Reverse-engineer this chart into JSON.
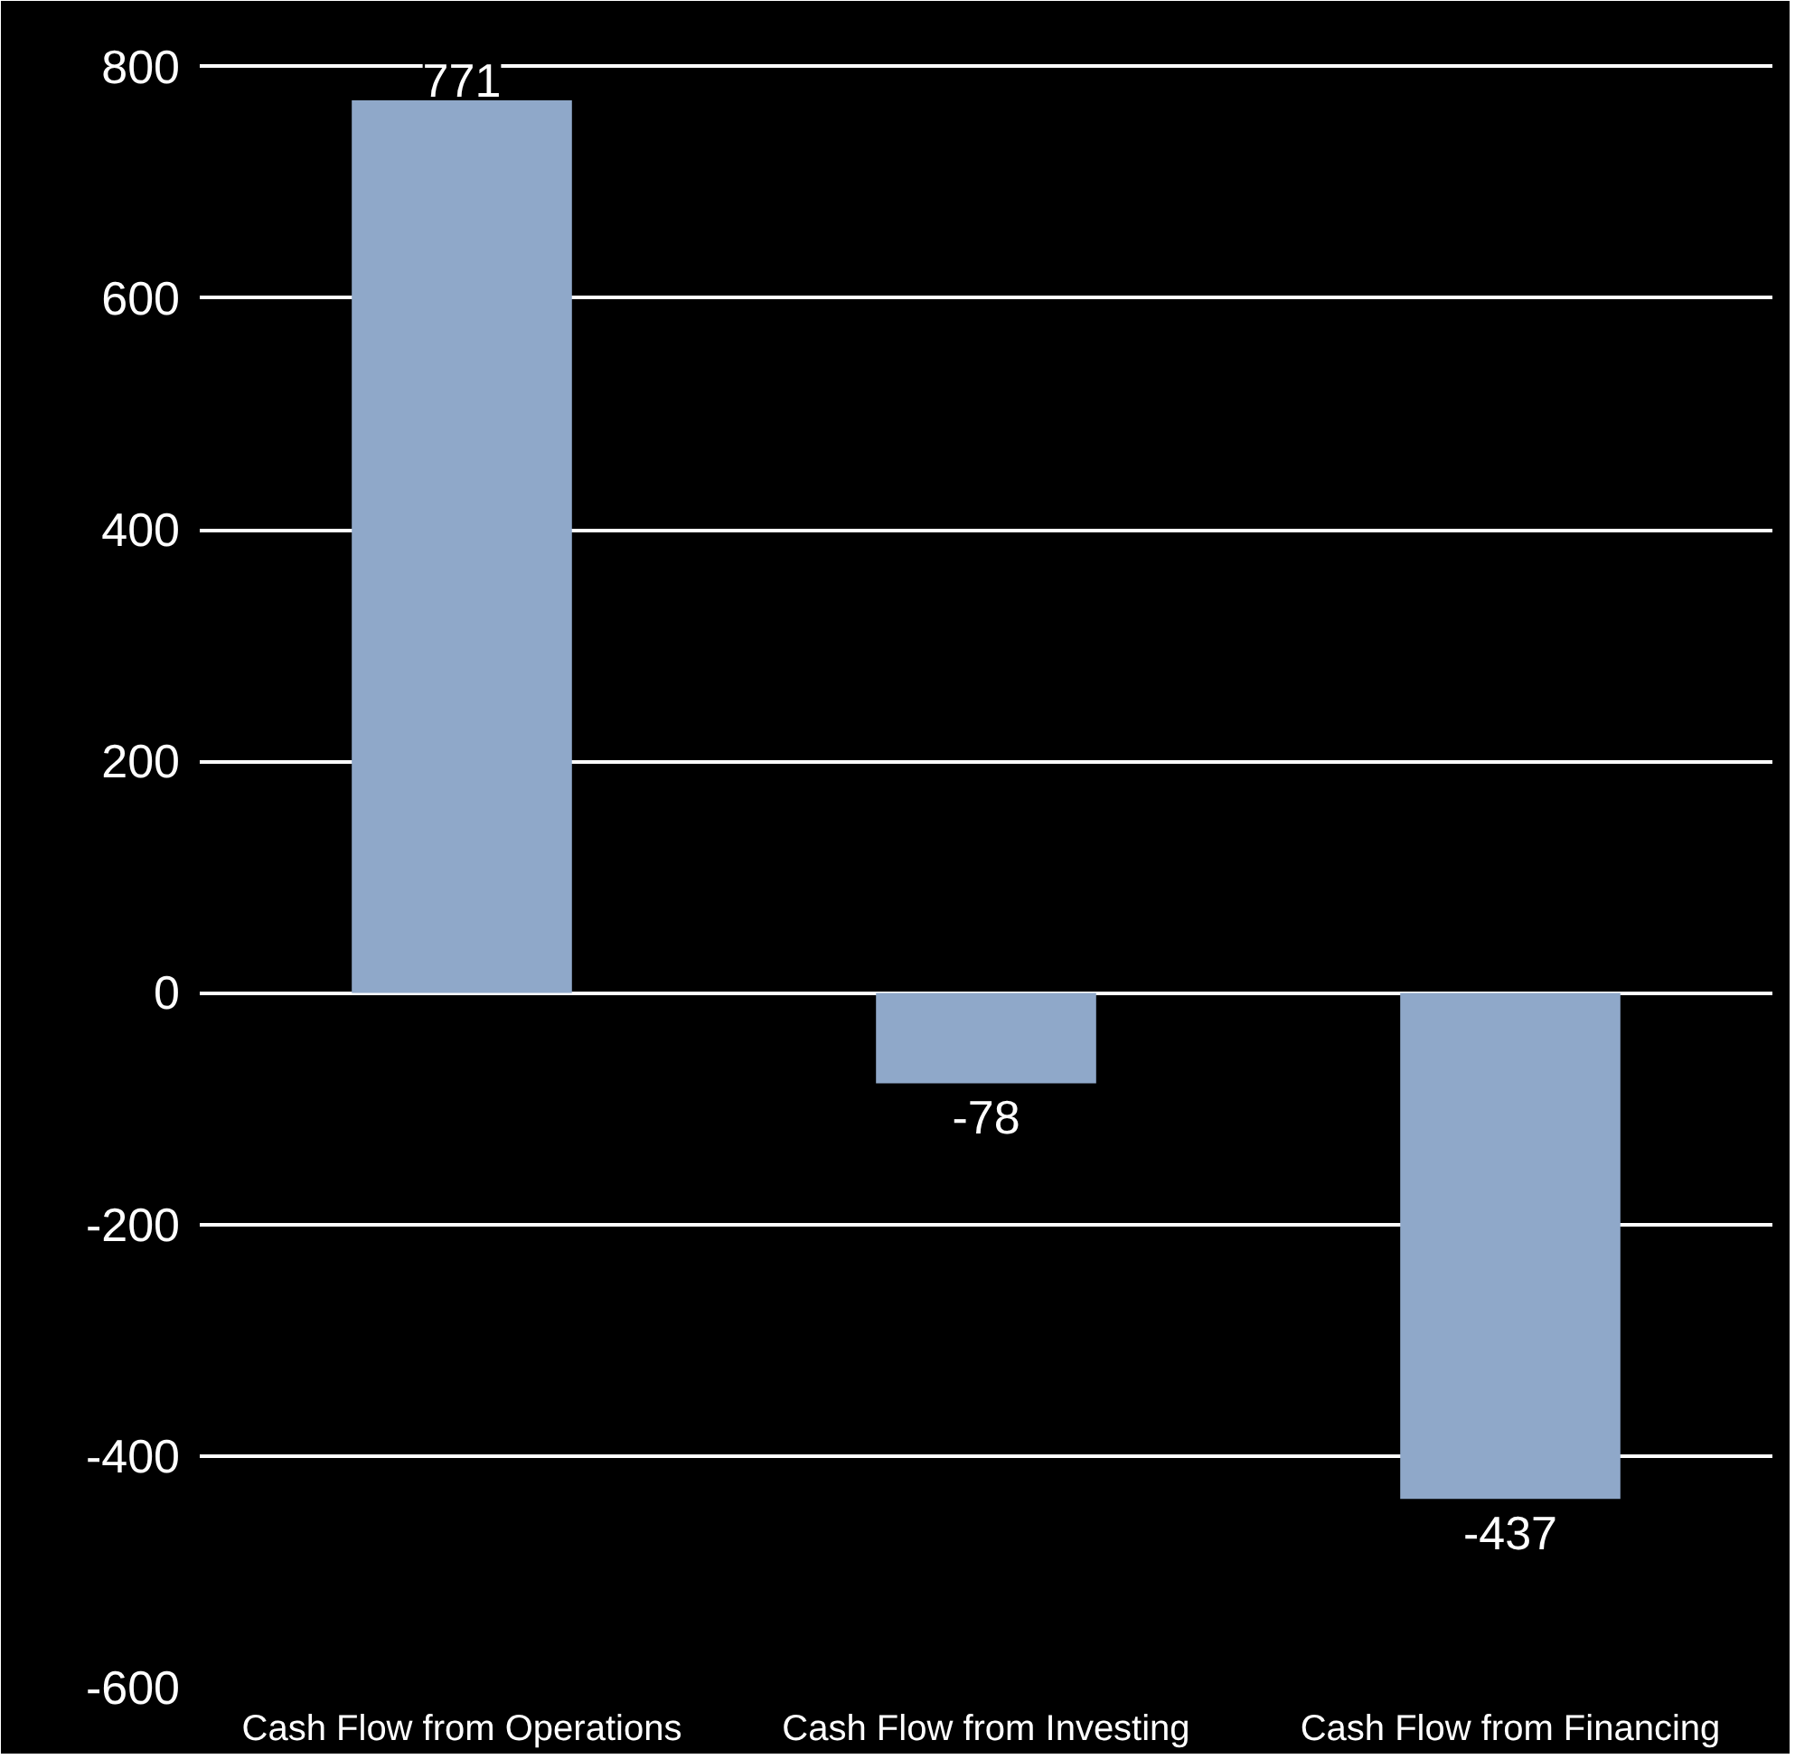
{
  "chart_data": {
    "type": "bar",
    "categories": [
      "Cash Flow from Operations",
      "Cash Flow from Investing",
      "Cash Flow from Financing"
    ],
    "values": [
      771,
      -78,
      -437
    ],
    "color": "#8fa8c9",
    "ylim": [
      -600,
      800
    ],
    "yticks": [
      -600,
      -400,
      -200,
      0,
      200,
      400,
      600,
      800
    ],
    "grid": "y",
    "data_labels": true
  }
}
